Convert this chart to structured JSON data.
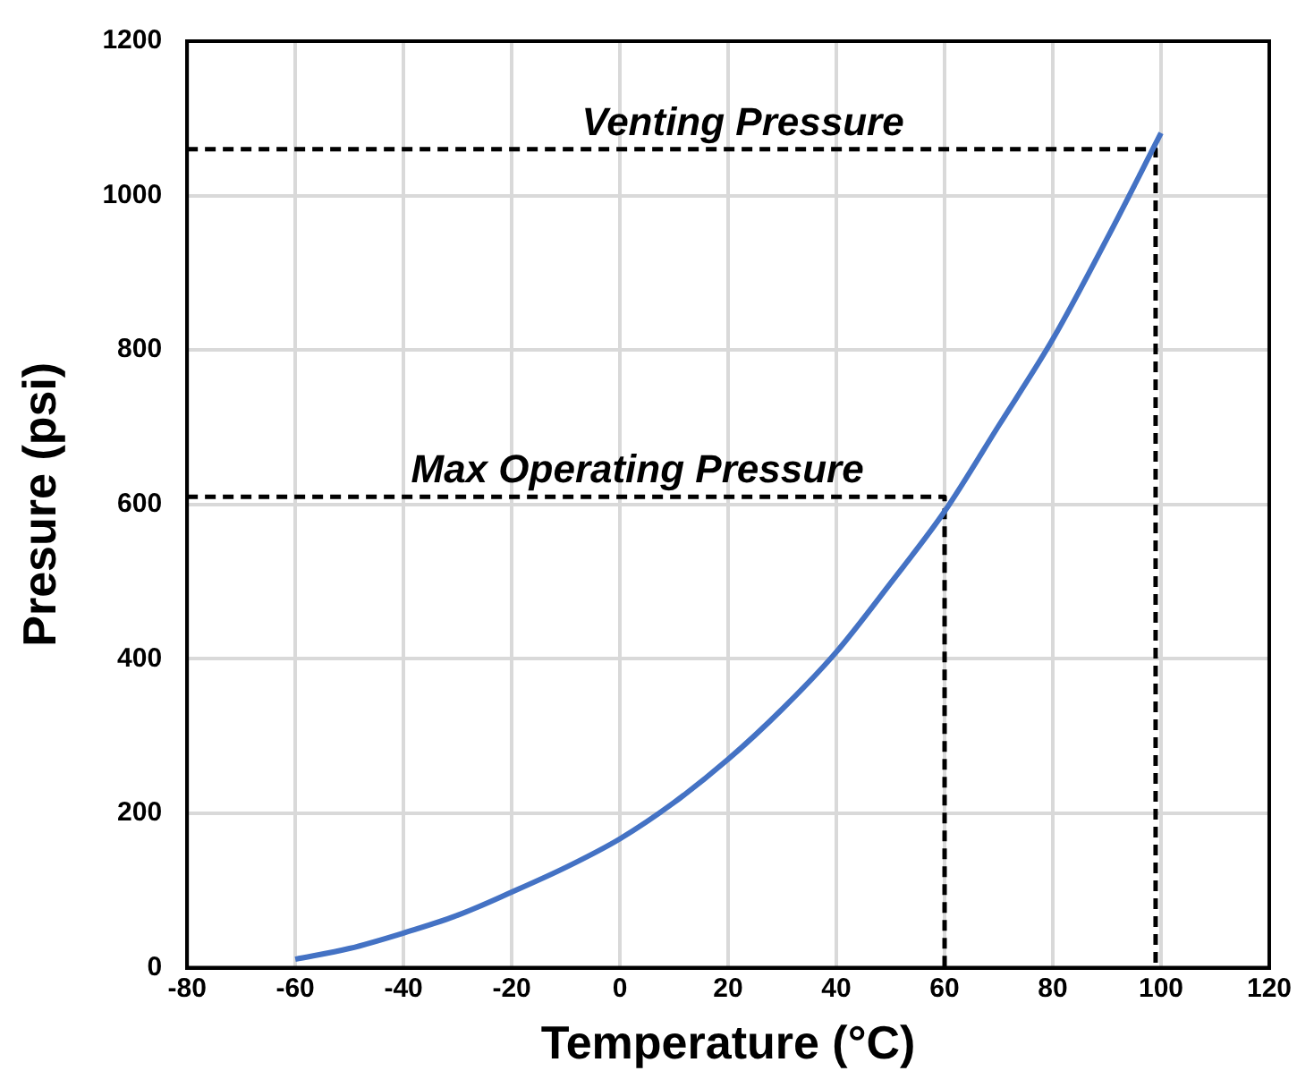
{
  "chart_data": {
    "type": "line",
    "xlabel": "Temperature (°C)",
    "ylabel": "Presure (psi)",
    "xlim": [
      -80,
      120
    ],
    "xticks": [
      -80,
      -60,
      -40,
      -20,
      0,
      20,
      40,
      60,
      80,
      100,
      120
    ],
    "ylim": [
      0,
      1200
    ],
    "yticks": [
      0,
      200,
      400,
      600,
      800,
      1000,
      1200
    ],
    "grid": true,
    "legend": false,
    "series": [
      {
        "color": "#4472c4",
        "x": [
          -60,
          -50,
          -40,
          -30,
          -20,
          -10,
          0,
          10,
          20,
          30,
          40,
          50,
          60,
          70,
          80,
          90,
          100
        ],
        "values": [
          11,
          25,
          45,
          68,
          98,
          130,
          167,
          214,
          270,
          335,
          409,
          498,
          591,
          702,
          814,
          944,
          1081
        ]
      },
      {
        "name": "Max Operating Pressure",
        "color": "#000000",
        "line_style": "dashed",
        "x": [
          -80,
          60,
          60
        ],
        "values": [
          610,
          610,
          0
        ]
      },
      {
        "name": "Venting Pressure",
        "color": "#000000",
        "line_style": "dashed",
        "x": [
          -80,
          99,
          99
        ],
        "values": [
          1060,
          1060,
          0
        ]
      }
    ]
  }
}
